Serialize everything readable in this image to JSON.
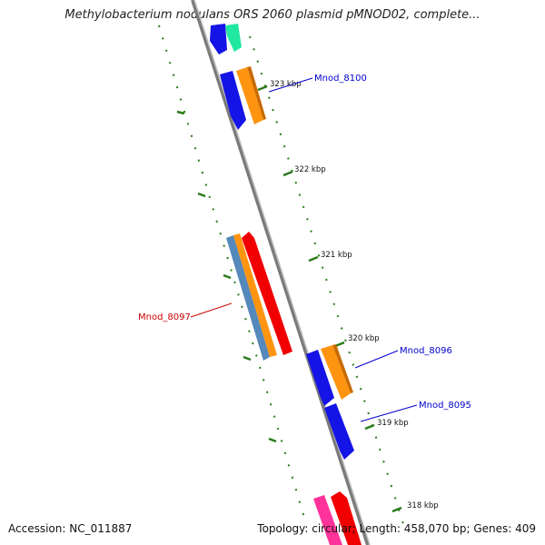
{
  "title": "Methylobacterium nodulans ORS 2060 plasmid pMNOD02, complete...",
  "footer": {
    "accession": "Accession: NC_011887",
    "summary": "Topology: circular; Length: 458,070 bp; Genes: 409"
  },
  "colors": {
    "backbone": "#7a7a7a",
    "tick": "#2a7a1a",
    "blue": "#1414e6",
    "orange": "#ff9410",
    "red": "#f00000",
    "steel": "#5588bb",
    "teal": "#20e8a0",
    "pink": "#ff3399",
    "label_blue": "#0000cc",
    "label_red": "#cc0000"
  },
  "ticks": [
    {
      "label": "323 kbp"
    },
    {
      "label": "322 kbp"
    },
    {
      "label": "321 kbp"
    },
    {
      "label": "320 kbp"
    },
    {
      "label": "319 kbp"
    },
    {
      "label": "318 kbp"
    }
  ],
  "genes": [
    {
      "label": "Mnod_8100"
    },
    {
      "label": "Mnod_8097"
    },
    {
      "label": "Mnod_8096"
    },
    {
      "label": "Mnod_8095"
    }
  ]
}
